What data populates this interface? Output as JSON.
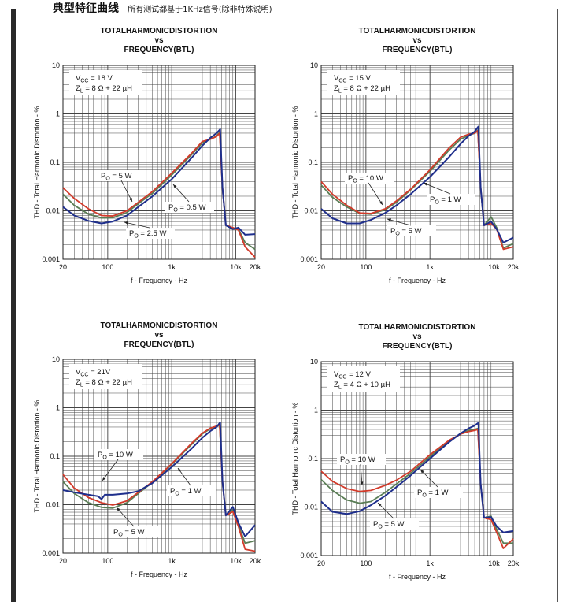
{
  "section": {
    "title": "典型特征曲线",
    "note": "所有测试都基于1KHz信号(除非特殊说明)"
  },
  "colors": {
    "blue": "#1f2f8c",
    "red": "#d23a2a",
    "green": "#5a7d55",
    "grid": "#444444",
    "text": "#111111"
  },
  "chart_data": [
    {
      "type": "line",
      "title_line1": "TOTALHARMONICDISTORTION",
      "title_line2": "vs",
      "title_line3": "FREQUENCY(BTL)",
      "xlabel": "f - Frequency - Hz",
      "ylabel": "THD - Total Harmonic Distortion - %",
      "xscale": "log",
      "yscale": "log",
      "xlim": [
        20,
        20000
      ],
      "ylim": [
        0.001,
        10
      ],
      "xticks": [
        {
          "v": 20,
          "label": "20"
        },
        {
          "v": 100,
          "label": "100"
        },
        {
          "v": 1000,
          "label": "1k"
        },
        {
          "v": 10000,
          "label": "10k"
        },
        {
          "v": 20000,
          "label": "20k"
        }
      ],
      "yticks": [
        {
          "v": 10,
          "label": "10"
        },
        {
          "v": 1,
          "label": "1"
        },
        {
          "v": 0.1,
          "label": "0.1"
        },
        {
          "v": 0.01,
          "label": "0.01"
        },
        {
          "v": 0.001,
          "label": "0.001"
        }
      ],
      "conditions": {
        "vcc": "V",
        "vcc_sub": "CC",
        "vcc_value": " = 18 V",
        "zl": "Z",
        "zl_sub": "L",
        "zl_value": " = 8 Ω + 22 µH"
      },
      "series": [
        {
          "name": "PO = 0.5 W",
          "color": "blue",
          "x": [
            20,
            30,
            50,
            80,
            120,
            200,
            300,
            500,
            1000,
            2000,
            3000,
            4000,
            5000,
            5700,
            6200,
            7000,
            9000,
            11000,
            14000,
            20000
          ],
          "y": [
            0.012,
            0.008,
            0.0062,
            0.0055,
            0.006,
            0.008,
            0.012,
            0.02,
            0.045,
            0.12,
            0.22,
            0.32,
            0.4,
            0.48,
            0.03,
            0.005,
            0.0042,
            0.0045,
            0.0032,
            0.0033
          ]
        },
        {
          "name": "PO = 5 W",
          "color": "red",
          "x": [
            20,
            30,
            50,
            80,
            120,
            200,
            300,
            500,
            1000,
            2000,
            3000,
            4000,
            5000,
            5600,
            6200,
            7000,
            9000,
            11000,
            14000,
            20000
          ],
          "y": [
            0.03,
            0.018,
            0.011,
            0.008,
            0.0078,
            0.01,
            0.015,
            0.025,
            0.06,
            0.15,
            0.27,
            0.3,
            0.34,
            0.4,
            0.03,
            0.005,
            0.0045,
            0.004,
            0.0018,
            0.0011
          ]
        },
        {
          "name": "PO = 2.5 W",
          "color": "green",
          "x": [
            20,
            30,
            50,
            80,
            120,
            200,
            300,
            500,
            1000,
            2000,
            3000,
            4000,
            5000,
            5600,
            6200,
            7000,
            9000,
            11000,
            14000,
            20000
          ],
          "y": [
            0.022,
            0.013,
            0.0085,
            0.0071,
            0.0072,
            0.0092,
            0.014,
            0.023,
            0.055,
            0.14,
            0.25,
            0.3,
            0.35,
            0.42,
            0.03,
            0.005,
            0.0042,
            0.0042,
            0.0022,
            0.0016
          ]
        }
      ],
      "annotations": [
        {
          "label": "P",
          "sub": "O",
          "value": " = 5 W"
        },
        {
          "label": "P",
          "sub": "O",
          "value": " = 0.5 W"
        },
        {
          "label": "P",
          "sub": "O",
          "value": " = 2.5 W"
        }
      ]
    },
    {
      "type": "line",
      "title_line1": "TOTALHARMONICDISTORTION",
      "title_line2": "vs",
      "title_line3": "FREQUENCY(BTL)",
      "xlabel": "f - Frequency - Hz",
      "ylabel": "THD - Total Harmonic Distortion - %",
      "xscale": "log",
      "yscale": "log",
      "xlim": [
        20,
        20000
      ],
      "ylim": [
        0.001,
        10
      ],
      "xticks": [
        {
          "v": 20,
          "label": "20"
        },
        {
          "v": 100,
          "label": "100"
        },
        {
          "v": 1000,
          "label": "1k"
        },
        {
          "v": 10000,
          "label": "10k"
        },
        {
          "v": 20000,
          "label": "20k"
        }
      ],
      "yticks": [
        {
          "v": 10,
          "label": "10"
        },
        {
          "v": 1,
          "label": "1"
        },
        {
          "v": 0.1,
          "label": "0.1"
        },
        {
          "v": 0.01,
          "label": "0.01"
        },
        {
          "v": 0.001,
          "label": "0.001"
        }
      ],
      "conditions": {
        "vcc": "V",
        "vcc_sub": "CC",
        "vcc_value": " = 15 V",
        "zl": "Z",
        "zl_sub": "L",
        "zl_value": " = 8 Ω + 22 µH"
      },
      "series": [
        {
          "name": "PO = 1 W",
          "color": "blue",
          "x": [
            20,
            30,
            50,
            80,
            120,
            200,
            300,
            500,
            1000,
            2000,
            3000,
            4000,
            5000,
            5700,
            6200,
            7000,
            9000,
            11000,
            14000,
            20000
          ],
          "y": [
            0.011,
            0.007,
            0.0055,
            0.0055,
            0.0065,
            0.009,
            0.013,
            0.022,
            0.05,
            0.13,
            0.24,
            0.35,
            0.43,
            0.55,
            0.03,
            0.005,
            0.006,
            0.0042,
            0.0022,
            0.0028
          ]
        },
        {
          "name": "PO = 10 W",
          "color": "red",
          "x": [
            20,
            30,
            50,
            80,
            120,
            200,
            300,
            500,
            1000,
            2000,
            3000,
            4000,
            5000,
            5600,
            6200,
            7000,
            9000,
            11000,
            14000,
            20000
          ],
          "y": [
            0.04,
            0.022,
            0.013,
            0.009,
            0.0088,
            0.011,
            0.016,
            0.028,
            0.07,
            0.2,
            0.33,
            0.38,
            0.4,
            0.45,
            0.03,
            0.005,
            0.0055,
            0.0042,
            0.0016,
            0.0018
          ]
        },
        {
          "name": "PO = 5 W",
          "color": "green",
          "x": [
            20,
            30,
            50,
            80,
            120,
            200,
            300,
            500,
            1000,
            2000,
            3000,
            4000,
            5000,
            5600,
            6200,
            7000,
            9000,
            11000,
            14000,
            20000
          ],
          "y": [
            0.034,
            0.019,
            0.012,
            0.0088,
            0.0085,
            0.0105,
            0.015,
            0.027,
            0.065,
            0.18,
            0.3,
            0.36,
            0.4,
            0.46,
            0.03,
            0.005,
            0.0075,
            0.0045,
            0.0017,
            0.0021
          ]
        }
      ],
      "annotations": [
        {
          "label": "P",
          "sub": "O",
          "value": " = 10 W"
        },
        {
          "label": "P",
          "sub": "O",
          "value": " = 1 W"
        },
        {
          "label": "P",
          "sub": "O",
          "value": " = 5 W"
        }
      ]
    },
    {
      "type": "line",
      "title_line1": "TOTALHARMONICDISTORTION",
      "title_line2": "vs",
      "title_line3": "FREQUENCY(BTL)",
      "xlabel": "f - Frequency - Hz",
      "ylabel": "THD - Total Harmonic Distortion - %",
      "xscale": "log",
      "yscale": "log",
      "xlim": [
        20,
        20000
      ],
      "ylim": [
        0.001,
        10
      ],
      "xticks": [
        {
          "v": 20,
          "label": "20"
        },
        {
          "v": 100,
          "label": "100"
        },
        {
          "v": 1000,
          "label": "1k"
        },
        {
          "v": 10000,
          "label": "10k"
        },
        {
          "v": 20000,
          "label": "20k"
        }
      ],
      "yticks": [
        {
          "v": 10,
          "label": "10"
        },
        {
          "v": 1,
          "label": "1"
        },
        {
          "v": 0.1,
          "label": "0.1"
        },
        {
          "v": 0.01,
          "label": "0.01"
        },
        {
          "v": 0.001,
          "label": "0.001"
        }
      ],
      "conditions": {
        "vcc": "V",
        "vcc_sub": "CC",
        "vcc_value": " = 21V",
        "zl": "Z",
        "zl_sub": "L",
        "zl_value": " = 8 Ω + 22 µH"
      },
      "series": [
        {
          "name": "PO = 10 W",
          "color": "blue",
          "x": [
            20,
            30,
            50,
            70,
            80,
            90,
            120,
            200,
            300,
            500,
            1000,
            2000,
            3000,
            4000,
            5000,
            5700,
            6200,
            7000,
            9000,
            11000,
            14000,
            20000
          ],
          "y": [
            0.02,
            0.018,
            0.016,
            0.015,
            0.013,
            0.016,
            0.016,
            0.017,
            0.019,
            0.028,
            0.06,
            0.14,
            0.24,
            0.33,
            0.4,
            0.5,
            0.03,
            0.006,
            0.009,
            0.0042,
            0.0022,
            0.0038
          ]
        },
        {
          "name": "PO = 1 W",
          "color": "red",
          "x": [
            20,
            30,
            50,
            80,
            120,
            200,
            300,
            500,
            1000,
            2000,
            3000,
            4000,
            5000,
            5600,
            6200,
            7000,
            9000,
            11000,
            14000,
            20000
          ],
          "y": [
            0.042,
            0.022,
            0.014,
            0.011,
            0.0098,
            0.012,
            0.018,
            0.03,
            0.07,
            0.18,
            0.3,
            0.38,
            0.42,
            0.45,
            0.03,
            0.006,
            0.0072,
            0.0035,
            0.0012,
            0.0011
          ]
        },
        {
          "name": "PO = 5 W",
          "color": "green",
          "x": [
            20,
            30,
            50,
            80,
            120,
            200,
            300,
            500,
            1000,
            2000,
            3000,
            4000,
            5000,
            5600,
            6200,
            7000,
            9000,
            11000,
            14000,
            20000
          ],
          "y": [
            0.03,
            0.017,
            0.011,
            0.0088,
            0.0085,
            0.011,
            0.017,
            0.029,
            0.068,
            0.17,
            0.29,
            0.37,
            0.41,
            0.44,
            0.03,
            0.006,
            0.008,
            0.0038,
            0.0016,
            0.0018
          ]
        }
      ],
      "annotations": [
        {
          "label": "P",
          "sub": "O",
          "value": " = 10 W"
        },
        {
          "label": "P",
          "sub": "O",
          "value": " = 1 W"
        },
        {
          "label": "P",
          "sub": "O",
          "value": " = 5 W"
        }
      ]
    },
    {
      "type": "line",
      "title_line1": "TOTALHARMONICDISTORTION",
      "title_line2": "vs",
      "title_line3": "FREQUENCY(BTL)",
      "xlabel": "f - Frequency - Hz",
      "ylabel": "THD - Total Harmonic Distortion - %",
      "xscale": "log",
      "yscale": "log",
      "xlim": [
        20,
        20000
      ],
      "ylim": [
        0.001,
        10
      ],
      "xticks": [
        {
          "v": 20,
          "label": "20"
        },
        {
          "v": 100,
          "label": "100"
        },
        {
          "v": 1000,
          "label": "1k"
        },
        {
          "v": 10000,
          "label": "10k"
        },
        {
          "v": 20000,
          "label": "20k"
        }
      ],
      "yticks": [
        {
          "v": 10,
          "label": "10"
        },
        {
          "v": 1,
          "label": "1"
        },
        {
          "v": 0.1,
          "label": "0.1"
        },
        {
          "v": 0.01,
          "label": "0.01"
        },
        {
          "v": 0.001,
          "label": "0.001"
        }
      ],
      "conditions": {
        "vcc": "V",
        "vcc_sub": "CC",
        "vcc_value": " = 12 V",
        "zl": "Z",
        "zl_sub": "L",
        "zl_value": " = 4 Ω + 10 µH"
      },
      "series": [
        {
          "name": "PO = 1 W",
          "color": "blue",
          "x": [
            20,
            30,
            50,
            80,
            120,
            200,
            300,
            500,
            1000,
            2000,
            3000,
            4000,
            5000,
            5700,
            6200,
            7000,
            9000,
            11000,
            14000,
            20000
          ],
          "y": [
            0.013,
            0.008,
            0.0072,
            0.0082,
            0.011,
            0.017,
            0.026,
            0.045,
            0.1,
            0.22,
            0.33,
            0.42,
            0.48,
            0.55,
            0.03,
            0.006,
            0.0062,
            0.004,
            0.003,
            0.0032
          ]
        },
        {
          "name": "PO = 10 W",
          "color": "red",
          "x": [
            20,
            30,
            50,
            80,
            120,
            200,
            300,
            500,
            1000,
            2000,
            3000,
            4000,
            5000,
            5600,
            6200,
            7000,
            9000,
            11000,
            14000,
            20000
          ],
          "y": [
            0.055,
            0.034,
            0.024,
            0.021,
            0.022,
            0.028,
            0.036,
            0.055,
            0.12,
            0.24,
            0.32,
            0.36,
            0.38,
            0.4,
            0.03,
            0.006,
            0.0055,
            0.003,
            0.0014,
            0.0022
          ]
        },
        {
          "name": "PO = 5 W",
          "color": "green",
          "x": [
            20,
            30,
            50,
            80,
            120,
            200,
            300,
            500,
            1000,
            2000,
            3000,
            4000,
            5000,
            5600,
            6200,
            7000,
            9000,
            11000,
            14000,
            20000
          ],
          "y": [
            0.037,
            0.022,
            0.014,
            0.012,
            0.013,
            0.02,
            0.03,
            0.05,
            0.11,
            0.23,
            0.32,
            0.38,
            0.4,
            0.42,
            0.03,
            0.006,
            0.0065,
            0.0035,
            0.0018,
            0.0018
          ]
        }
      ],
      "annotations": [
        {
          "label": "P",
          "sub": "O",
          "value": " = 10 W"
        },
        {
          "label": "P",
          "sub": "O",
          "value": " = 1 W"
        },
        {
          "label": "P",
          "sub": "O",
          "value": " = 5 W"
        }
      ]
    }
  ]
}
